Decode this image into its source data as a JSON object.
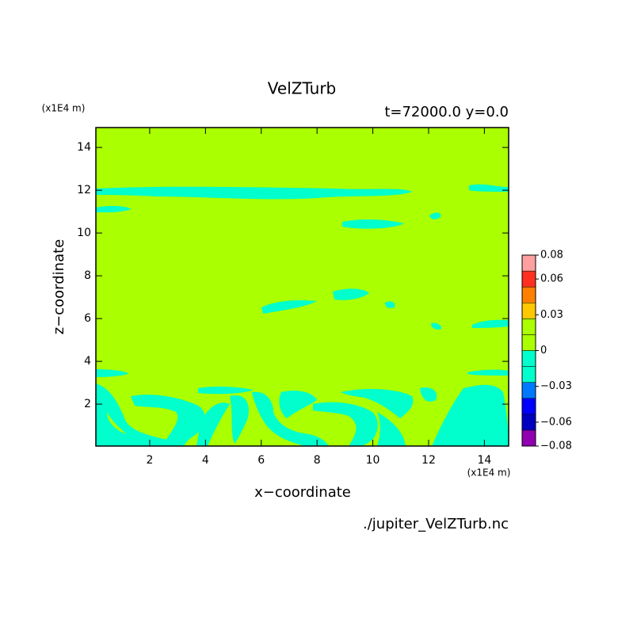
{
  "chart_data": {
    "type": "contour",
    "title": "VelZTurb",
    "subtitle": "t=72000.0 y=0.0",
    "x_label": "x−coordinate",
    "y_label": "z−coordinate",
    "x_unit": "(x1E4 m)",
    "y_unit": "(x1E4 m)",
    "source": "./jupiter_VelZTurb.nc",
    "xlim": [
      0.07,
      14.87
    ],
    "ylim": [
      0.04,
      14.93
    ],
    "xticks": [
      2,
      4,
      6,
      8,
      10,
      12,
      14
    ],
    "yticks": [
      2,
      4,
      6,
      8,
      10,
      12,
      14
    ],
    "background_color": "#aaff00",
    "colorbar": {
      "clim": [
        -0.08,
        0.08
      ],
      "colors": [
        "#9000b0",
        "#0000c0",
        "#0000ff",
        "#0078ff",
        "#00ffcc",
        "#00ffcc",
        "#aaff00",
        "#aaff00",
        "#ffc800",
        "#ff8000",
        "#ff3020",
        "#ffa0a0"
      ],
      "ticks": [
        {
          "value": -0.08,
          "label": "−0.08"
        },
        {
          "value": -0.06,
          "label": "−0.06"
        },
        {
          "value": -0.03,
          "label": "−0.03"
        },
        0,
        0.03,
        0.06,
        0.08
      ]
    }
  }
}
